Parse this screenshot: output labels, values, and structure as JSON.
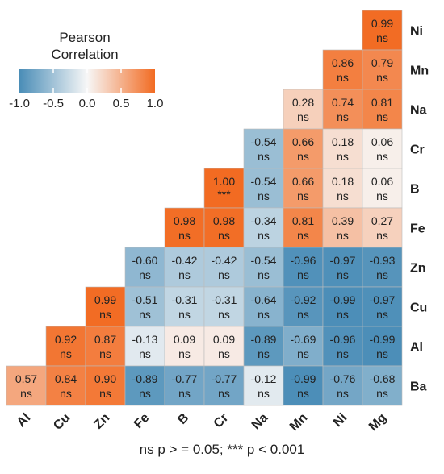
{
  "chart_data": {
    "type": "heatmap",
    "title": "",
    "x_labels": [
      "Al",
      "Cu",
      "Zn",
      "Fe",
      "B",
      "Cr",
      "Na",
      "Mn",
      "Ni",
      "Mg"
    ],
    "y_labels": [
      "Ni",
      "Mn",
      "Na",
      "Cr",
      "B",
      "Fe",
      "Zn",
      "Cu",
      "Al",
      "Ba"
    ],
    "cells": [
      {
        "row": "Ni",
        "col": "Mg",
        "value": 0.99,
        "sig": "ns"
      },
      {
        "row": "Mn",
        "col": "Ni",
        "value": 0.86,
        "sig": "ns"
      },
      {
        "row": "Mn",
        "col": "Mg",
        "value": 0.79,
        "sig": "ns"
      },
      {
        "row": "Na",
        "col": "Mn",
        "value": 0.28,
        "sig": "ns"
      },
      {
        "row": "Na",
        "col": "Ni",
        "value": 0.74,
        "sig": "ns"
      },
      {
        "row": "Na",
        "col": "Mg",
        "value": 0.81,
        "sig": "ns"
      },
      {
        "row": "Cr",
        "col": "Na",
        "value": -0.54,
        "sig": "ns"
      },
      {
        "row": "Cr",
        "col": "Mn",
        "value": 0.66,
        "sig": "ns"
      },
      {
        "row": "Cr",
        "col": "Ni",
        "value": 0.18,
        "sig": "ns"
      },
      {
        "row": "Cr",
        "col": "Mg",
        "value": 0.06,
        "sig": "ns"
      },
      {
        "row": "B",
        "col": "Cr",
        "value": 1.0,
        "sig": "***"
      },
      {
        "row": "B",
        "col": "Na",
        "value": -0.54,
        "sig": "ns"
      },
      {
        "row": "B",
        "col": "Mn",
        "value": 0.66,
        "sig": "ns"
      },
      {
        "row": "B",
        "col": "Ni",
        "value": 0.18,
        "sig": "ns"
      },
      {
        "row": "B",
        "col": "Mg",
        "value": 0.06,
        "sig": "ns"
      },
      {
        "row": "Fe",
        "col": "B",
        "value": 0.98,
        "sig": "ns"
      },
      {
        "row": "Fe",
        "col": "Cr",
        "value": 0.98,
        "sig": "ns"
      },
      {
        "row": "Fe",
        "col": "Na",
        "value": -0.34,
        "sig": "ns"
      },
      {
        "row": "Fe",
        "col": "Mn",
        "value": 0.81,
        "sig": "ns"
      },
      {
        "row": "Fe",
        "col": "Ni",
        "value": 0.39,
        "sig": "ns"
      },
      {
        "row": "Fe",
        "col": "Mg",
        "value": 0.27,
        "sig": "ns"
      },
      {
        "row": "Zn",
        "col": "Fe",
        "value": -0.6,
        "sig": "ns"
      },
      {
        "row": "Zn",
        "col": "B",
        "value": -0.42,
        "sig": "ns"
      },
      {
        "row": "Zn",
        "col": "Cr",
        "value": -0.42,
        "sig": "ns"
      },
      {
        "row": "Zn",
        "col": "Na",
        "value": -0.54,
        "sig": "ns"
      },
      {
        "row": "Zn",
        "col": "Mn",
        "value": -0.96,
        "sig": "ns"
      },
      {
        "row": "Zn",
        "col": "Ni",
        "value": -0.97,
        "sig": "ns"
      },
      {
        "row": "Zn",
        "col": "Mg",
        "value": -0.93,
        "sig": "ns"
      },
      {
        "row": "Cu",
        "col": "Zn",
        "value": 0.99,
        "sig": "ns"
      },
      {
        "row": "Cu",
        "col": "Fe",
        "value": -0.51,
        "sig": "ns"
      },
      {
        "row": "Cu",
        "col": "B",
        "value": -0.31,
        "sig": "ns"
      },
      {
        "row": "Cu",
        "col": "Cr",
        "value": -0.31,
        "sig": "ns"
      },
      {
        "row": "Cu",
        "col": "Na",
        "value": -0.64,
        "sig": "ns"
      },
      {
        "row": "Cu",
        "col": "Mn",
        "value": -0.92,
        "sig": "ns"
      },
      {
        "row": "Cu",
        "col": "Ni",
        "value": -0.99,
        "sig": "ns"
      },
      {
        "row": "Cu",
        "col": "Mg",
        "value": -0.97,
        "sig": "ns"
      },
      {
        "row": "Al",
        "col": "Cu",
        "value": 0.92,
        "sig": "ns"
      },
      {
        "row": "Al",
        "col": "Zn",
        "value": 0.87,
        "sig": "ns"
      },
      {
        "row": "Al",
        "col": "Fe",
        "value": -0.13,
        "sig": "ns"
      },
      {
        "row": "Al",
        "col": "B",
        "value": 0.09,
        "sig": "ns"
      },
      {
        "row": "Al",
        "col": "Cr",
        "value": 0.09,
        "sig": "ns"
      },
      {
        "row": "Al",
        "col": "Na",
        "value": -0.89,
        "sig": "ns"
      },
      {
        "row": "Al",
        "col": "Mn",
        "value": -0.69,
        "sig": "ns"
      },
      {
        "row": "Al",
        "col": "Ni",
        "value": -0.96,
        "sig": "ns"
      },
      {
        "row": "Al",
        "col": "Mg",
        "value": -0.99,
        "sig": "ns"
      },
      {
        "row": "Ba",
        "col": "Al",
        "value": 0.57,
        "sig": "ns"
      },
      {
        "row": "Ba",
        "col": "Cu",
        "value": 0.84,
        "sig": "ns"
      },
      {
        "row": "Ba",
        "col": "Zn",
        "value": 0.9,
        "sig": "ns"
      },
      {
        "row": "Ba",
        "col": "Fe",
        "value": -0.89,
        "sig": "ns"
      },
      {
        "row": "Ba",
        "col": "B",
        "value": -0.77,
        "sig": "ns"
      },
      {
        "row": "Ba",
        "col": "Cr",
        "value": -0.77,
        "sig": "ns"
      },
      {
        "row": "Ba",
        "col": "Na",
        "value": -0.12,
        "sig": "ns"
      },
      {
        "row": "Ba",
        "col": "Mn",
        "value": -0.99,
        "sig": "ns"
      },
      {
        "row": "Ba",
        "col": "Ni",
        "value": -0.76,
        "sig": "ns"
      },
      {
        "row": "Ba",
        "col": "Mg",
        "value": -0.68,
        "sig": "ns"
      }
    ],
    "legend": {
      "title_line1": "Pearson",
      "title_line2": "Correlation",
      "ticks": [
        "-1.0",
        "-0.5",
        "0.0",
        "0.5",
        "1.0"
      ],
      "range": [
        -1,
        1
      ],
      "placement": "top-left"
    },
    "colors": {
      "negative": "#4a8db7",
      "zero": "#f7f7f7",
      "positive": "#f26b22",
      "grid": "#bbbbbb"
    },
    "footnote": "ns p > = 0.05; *** p < 0.001"
  }
}
